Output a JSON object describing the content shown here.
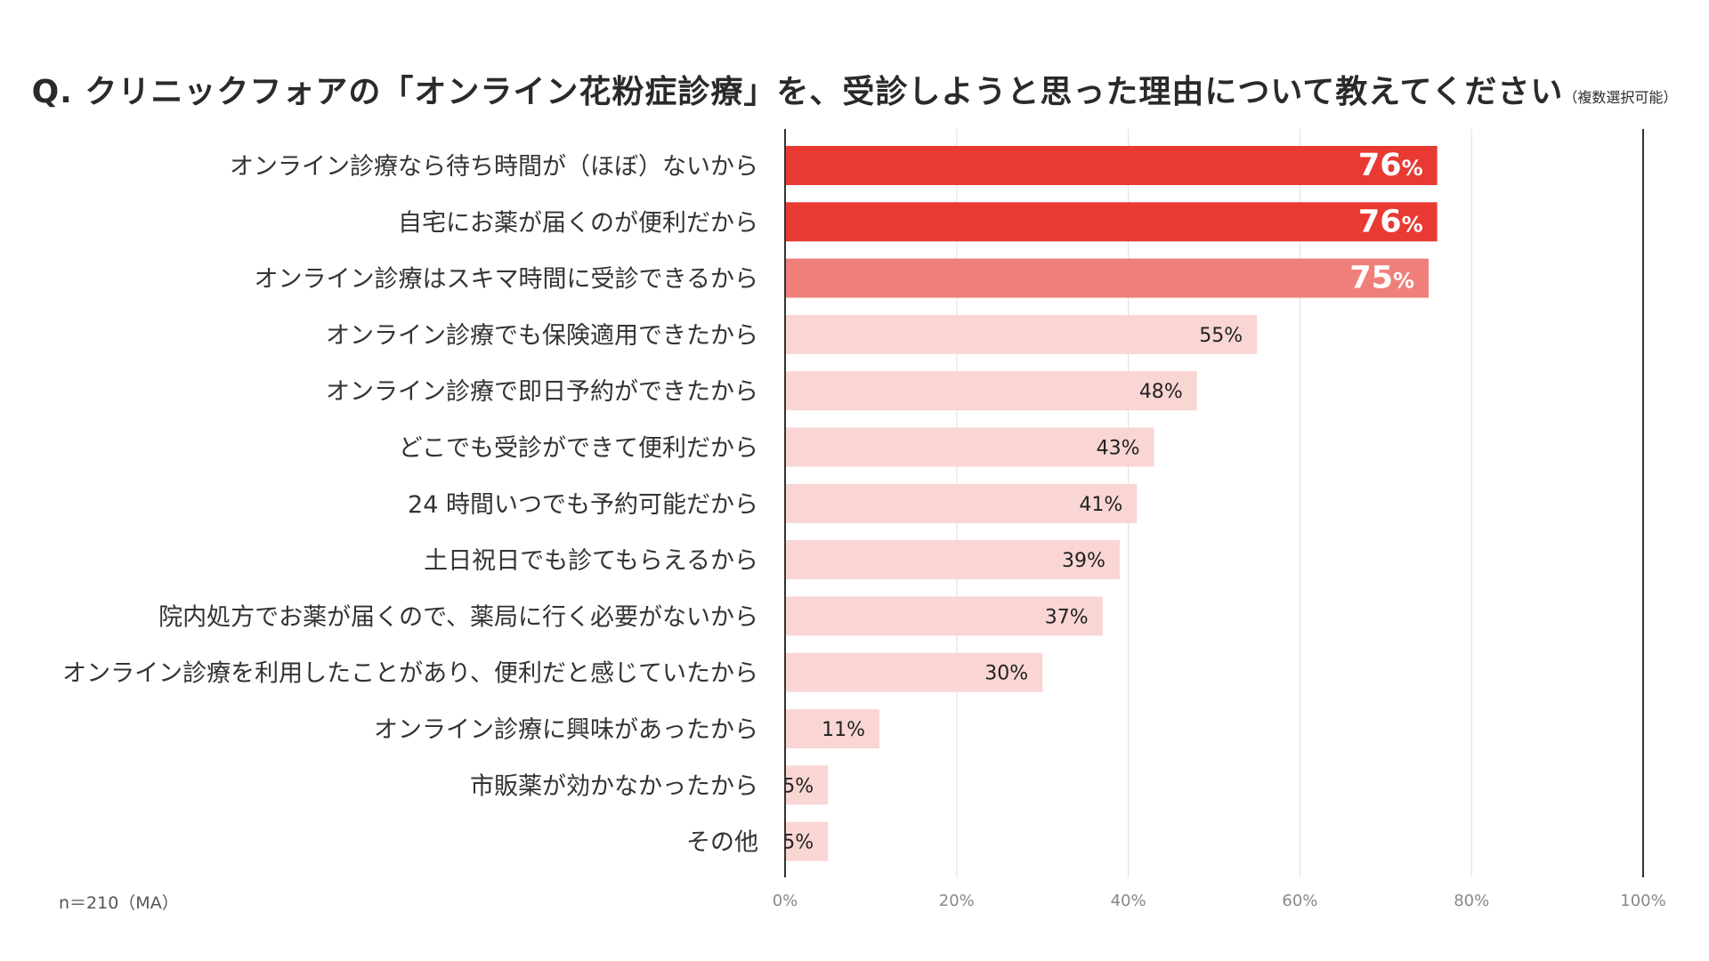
{
  "chart_data": {
    "type": "bar",
    "orientation": "horizontal",
    "title": "Q. クリニックフォアの「オンライン花粉症診療」を、受診しようと思った理由について教えてください",
    "title_note": "（複数選択可能）",
    "categories": [
      "オンライン診療なら待ち時間が（ほぼ）ないから",
      "自宅にお薬が届くのが便利だから",
      "オンライン診療はスキマ時間に受診できるから",
      "オンライン診療でも保険適用できたから",
      "オンライン診療で即日予約ができたから",
      "どこでも受診ができて便利だから",
      "24 時間いつでも予約可能だから",
      "土日祝日でも診てもらえるから",
      "院内処方でお薬が届くので、薬局に行く必要がないから",
      "オンライン診療を利用したことがあり、便利だと感じていたから",
      "オンライン診療に興味があったから",
      "市販薬が効かなかったから",
      "その他"
    ],
    "values": [
      76,
      76,
      75,
      55,
      48,
      43,
      41,
      39,
      37,
      30,
      11,
      5,
      5
    ],
    "value_suffix": "%",
    "xlim": [
      0,
      100
    ],
    "xticks": [
      0,
      20,
      40,
      60,
      80,
      100
    ],
    "xtick_labels": [
      "0%",
      "20%",
      "40%",
      "60%",
      "80%",
      "100%"
    ],
    "grid": true,
    "legend": "none",
    "colors": {
      "top": "#e83a33",
      "third": "#ef8079",
      "rest": "#f9d6d4",
      "top_label": "#ffffff",
      "rest_label": "#222222",
      "grid": "#e4e4e4",
      "axis": "#333333"
    },
    "sample_note": "n＝210（MA）"
  }
}
